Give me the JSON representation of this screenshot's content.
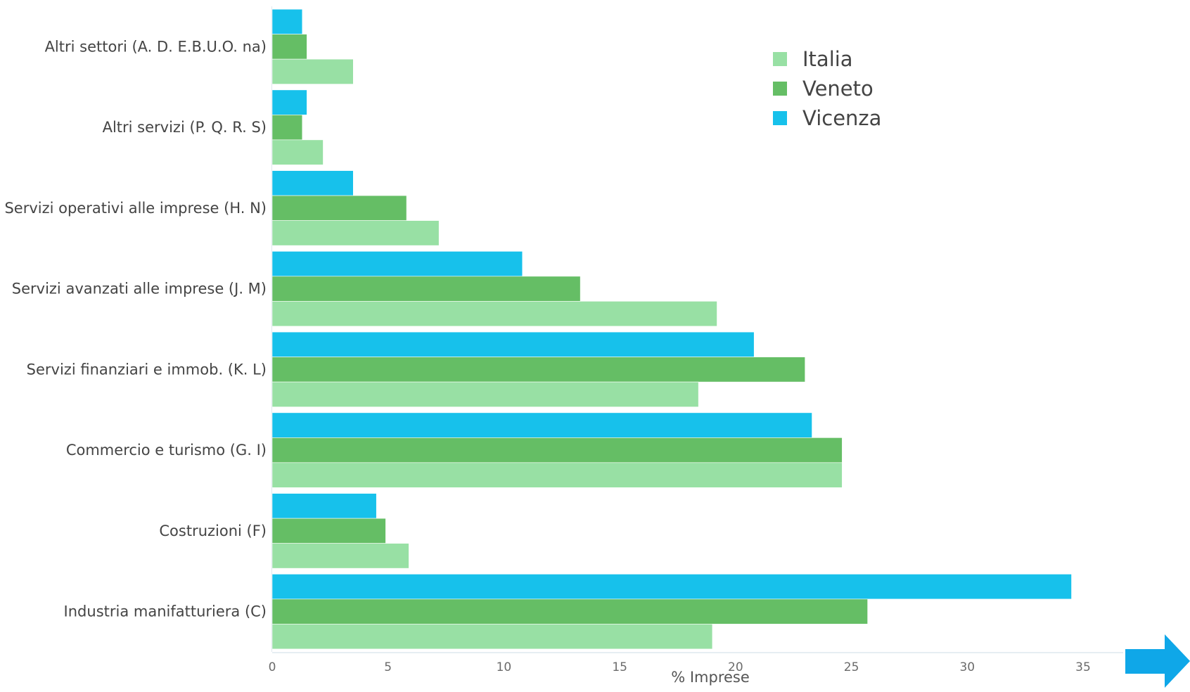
{
  "chart_data": {
    "type": "bar",
    "orientation": "horizontal",
    "xlabel": "% Imprese",
    "xlim": [
      0,
      35
    ],
    "xticks": [
      0,
      5,
      10,
      15,
      20,
      25,
      30,
      35
    ],
    "grid": false,
    "legend_position": "top-right",
    "categories": [
      "Altri settori (A. D. E.B.U.O. na)",
      "Altri servizi (P. Q. R. S)",
      "Servizi operativi alle imprese (H. N)",
      "Servizi avanzati alle imprese (J. M)",
      "Servizi finanziari e immob. (K. L)",
      "Commercio e turismo (G. I)",
      "Costruzioni (F)",
      "Industria manifatturiera (C)"
    ],
    "series": [
      {
        "name": "Italia",
        "color": "#98e0a4",
        "values": [
          3.5,
          2.2,
          7.2,
          19.2,
          18.4,
          24.6,
          5.9,
          19.0
        ]
      },
      {
        "name": "Veneto",
        "color": "#65be65",
        "values": [
          1.5,
          1.3,
          5.8,
          13.3,
          23.0,
          24.6,
          4.9,
          25.7
        ]
      },
      {
        "name": "Vicenza",
        "color": "#17c1eb",
        "values": [
          1.3,
          1.5,
          3.5,
          10.8,
          20.8,
          23.3,
          4.5,
          34.5
        ]
      }
    ]
  },
  "decor": {
    "arrow_icon": "right-arrow-icon",
    "arrow_color": "#0fa7e8"
  }
}
